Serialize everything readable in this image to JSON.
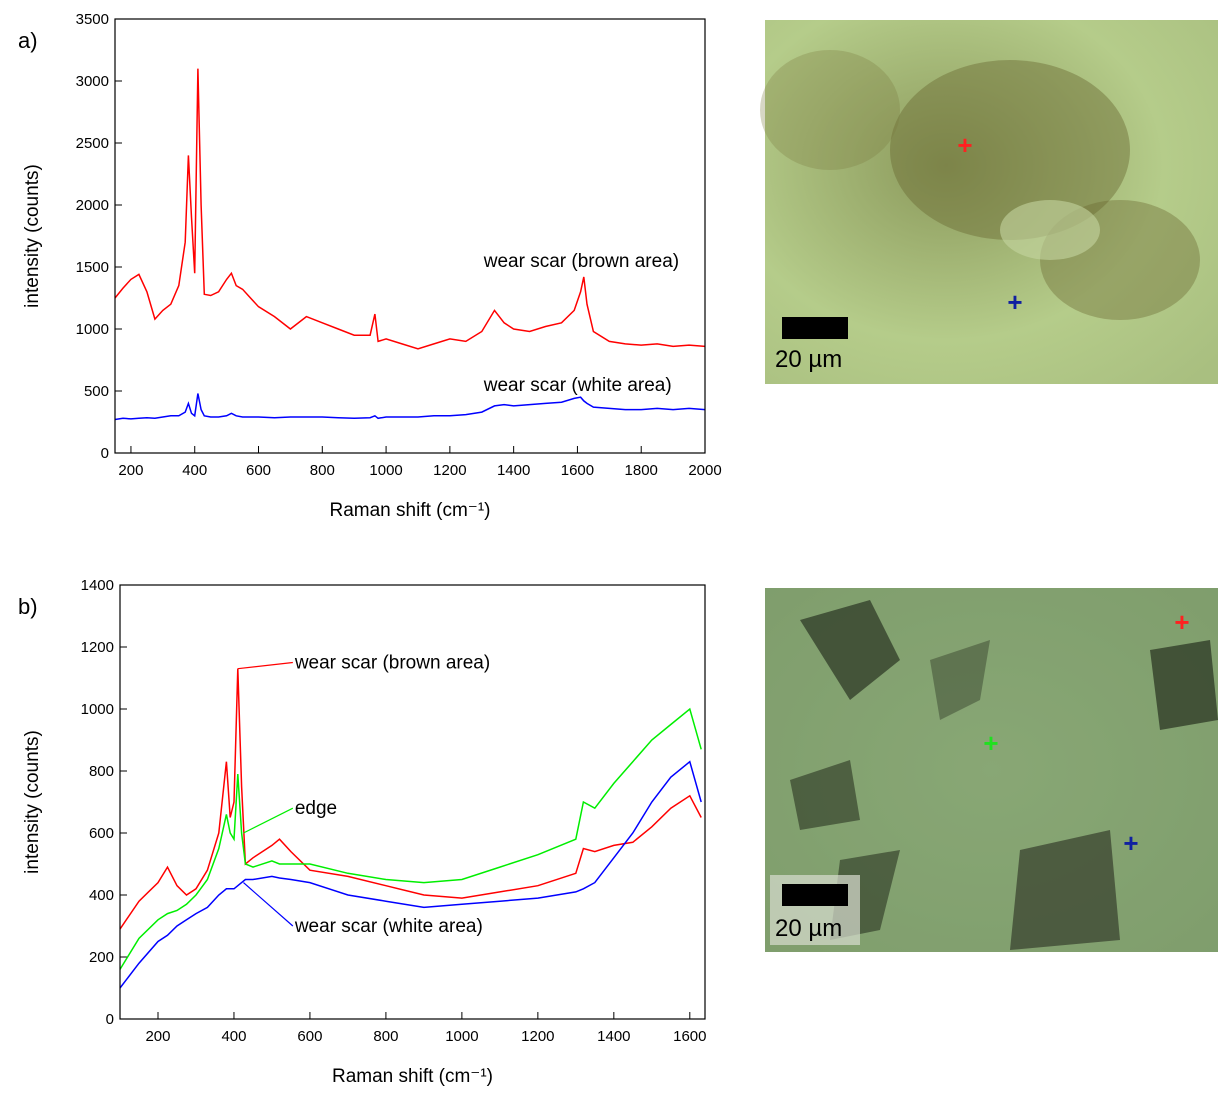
{
  "chart_data": [
    {
      "type": "line",
      "panel_label": "a)",
      "x_label": "Raman shift (cm⁻¹)",
      "y_label": "intensity (counts)",
      "x": [
        150,
        175,
        200,
        225,
        250,
        275,
        300,
        325,
        350,
        370,
        380,
        390,
        400,
        410,
        420,
        430,
        450,
        475,
        500,
        515,
        530,
        550,
        575,
        600,
        650,
        700,
        750,
        800,
        850,
        900,
        950,
        965,
        975,
        1000,
        1050,
        1100,
        1150,
        1200,
        1250,
        1300,
        1340,
        1370,
        1400,
        1450,
        1500,
        1550,
        1590,
        1610,
        1620,
        1630,
        1650,
        1700,
        1750,
        1800,
        1850,
        1900,
        1950,
        2000
      ],
      "series": [
        {
          "name": "wear scar (brown area)",
          "color": "#ff0000",
          "values": [
            1250,
            1330,
            1400,
            1440,
            1300,
            1080,
            1150,
            1200,
            1350,
            1700,
            2400,
            1900,
            1450,
            3100,
            2000,
            1280,
            1270,
            1300,
            1400,
            1450,
            1350,
            1320,
            1250,
            1180,
            1100,
            1000,
            1100,
            1050,
            1000,
            950,
            950,
            1120,
            900,
            920,
            880,
            840,
            880,
            920,
            900,
            980,
            1150,
            1050,
            1000,
            980,
            1020,
            1050,
            1150,
            1300,
            1420,
            1200,
            980,
            900,
            880,
            870,
            880,
            860,
            870,
            860
          ]
        },
        {
          "name": "wear scar (white area)",
          "color": "#0000ff",
          "values": [
            270,
            280,
            275,
            280,
            285,
            280,
            290,
            300,
            300,
            330,
            400,
            320,
            300,
            480,
            350,
            300,
            290,
            290,
            300,
            320,
            300,
            290,
            290,
            290,
            285,
            290,
            290,
            290,
            285,
            280,
            285,
            300,
            280,
            290,
            290,
            290,
            300,
            300,
            310,
            330,
            380,
            390,
            380,
            390,
            400,
            410,
            440,
            450,
            420,
            400,
            370,
            360,
            350,
            350,
            360,
            350,
            360,
            350
          ]
        }
      ],
      "xlim": [
        150,
        2000
      ],
      "xticks": [
        200,
        400,
        600,
        800,
        1000,
        1200,
        1400,
        1600,
        1800,
        2000
      ],
      "ylim": [
        0,
        3500
      ],
      "yticks": [
        0,
        500,
        1000,
        1500,
        2000,
        2500,
        3000,
        3500
      ]
    },
    {
      "type": "line",
      "panel_label": "b)",
      "x_label": "Raman shift (cm⁻¹)",
      "y_label": "intensity (counts)",
      "x": [
        100,
        150,
        200,
        225,
        250,
        275,
        300,
        330,
        360,
        380,
        390,
        400,
        410,
        420,
        430,
        450,
        500,
        520,
        550,
        600,
        700,
        800,
        900,
        1000,
        1100,
        1200,
        1300,
        1320,
        1350,
        1400,
        1450,
        1500,
        1550,
        1600,
        1630
      ],
      "series": [
        {
          "name": "wear scar (brown area)",
          "color": "#ff0000",
          "values": [
            290,
            380,
            440,
            490,
            430,
            400,
            420,
            480,
            600,
            830,
            650,
            700,
            1130,
            750,
            500,
            520,
            560,
            580,
            540,
            480,
            460,
            430,
            400,
            390,
            410,
            430,
            470,
            550,
            540,
            560,
            570,
            620,
            680,
            720,
            650
          ]
        },
        {
          "name": "edge",
          "color": "#00ee00",
          "values": [
            160,
            260,
            320,
            340,
            350,
            370,
            400,
            450,
            550,
            660,
            600,
            580,
            790,
            600,
            500,
            490,
            510,
            500,
            500,
            500,
            470,
            450,
            440,
            450,
            490,
            530,
            580,
            700,
            680,
            760,
            830,
            900,
            950,
            1000,
            870
          ]
        },
        {
          "name": "wear scar (white area)",
          "color": "#0000ff",
          "values": [
            100,
            180,
            250,
            270,
            300,
            320,
            340,
            360,
            400,
            420,
            420,
            420,
            430,
            440,
            450,
            450,
            460,
            455,
            450,
            440,
            400,
            380,
            360,
            370,
            380,
            390,
            410,
            420,
            440,
            520,
            600,
            700,
            780,
            830,
            700
          ]
        }
      ],
      "xlim": [
        100,
        1640
      ],
      "xticks": [
        200,
        400,
        600,
        800,
        1000,
        1200,
        1400,
        1600
      ],
      "ylim": [
        0,
        1400
      ],
      "yticks": [
        0,
        200,
        400,
        600,
        800,
        1000,
        1200,
        1400
      ]
    }
  ],
  "images": [
    {
      "scale_bar": "20 µm"
    },
    {
      "scale_bar": "20 µm"
    }
  ]
}
